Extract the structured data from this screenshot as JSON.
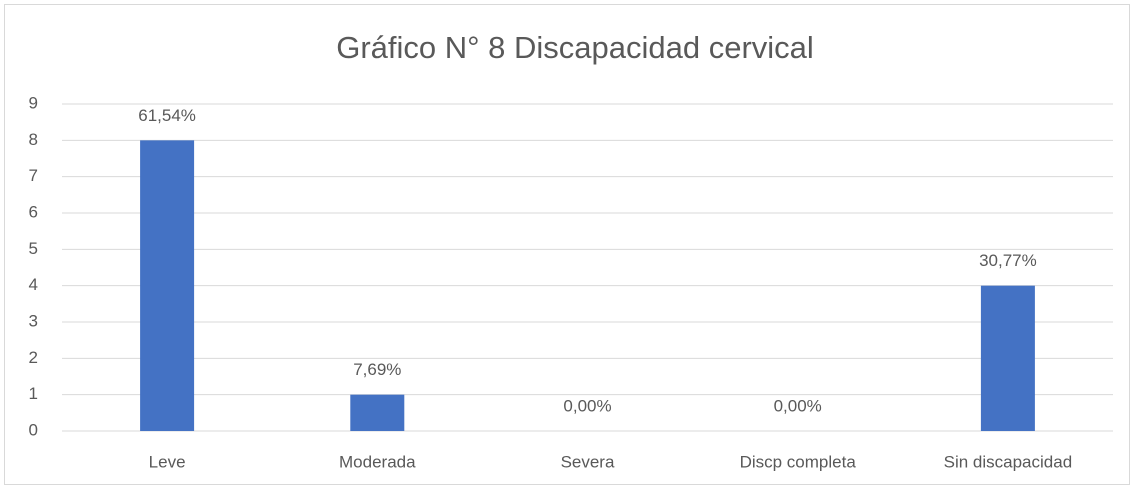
{
  "chart_data": {
    "type": "bar",
    "title": "Gráfico N° 8 Discapacidad cervical",
    "categories": [
      "Leve",
      "Moderada",
      "Severa",
      "Discp completa",
      "Sin discapacidad"
    ],
    "values": [
      8,
      1,
      0,
      0,
      4
    ],
    "annotations": [
      "61,54%",
      "7,69%",
      "0,00%",
      "0,00%",
      "30,77%"
    ],
    "color": "#4472c4",
    "ylim": [
      0,
      9
    ],
    "yticks": [
      0,
      1,
      2,
      3,
      4,
      5,
      6,
      7,
      8,
      9
    ],
    "grid": true
  }
}
